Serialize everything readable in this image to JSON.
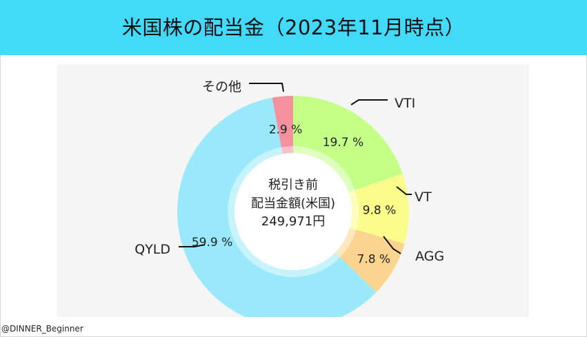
{
  "title": "米国株の配当金（2023年11月時点）",
  "credit": "@DINNER_Beginner",
  "chart_data": {
    "type": "pie",
    "donut": true,
    "center_label": [
      "税引き前",
      "配当金額(米国)",
      "249,971円"
    ],
    "slices": [
      {
        "label": "VTI",
        "value": 19.7,
        "value_label": "19.7 %",
        "color": "#c4ff87"
      },
      {
        "label": "VT",
        "value": 9.8,
        "value_label": "9.8 %",
        "color": "#f9fb8b"
      },
      {
        "label": "AGG",
        "value": 7.8,
        "value_label": "7.8 %",
        "color": "#fbd58f"
      },
      {
        "label": "QYLD",
        "value": 59.9,
        "value_label": "59.9 %",
        "color": "#9ae9fb"
      },
      {
        "label": "その他",
        "value": 2.9,
        "value_label": "2.9 %",
        "color": "#f5919e"
      }
    ],
    "start_angle_deg": 0,
    "direction": "clockwise",
    "legend": "none"
  }
}
